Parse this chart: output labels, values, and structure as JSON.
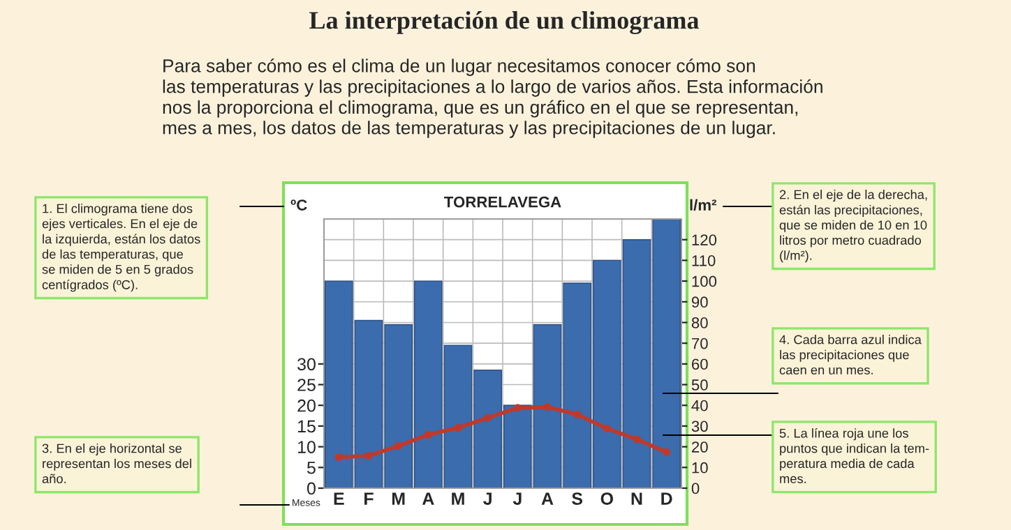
{
  "chart_data": {
    "type": "bar",
    "title": "TORRELAVEGA",
    "annotations": [
      "La interpretación de un climograma",
      "Para saber cómo es el clima de un lugar necesitamos conocer cómo son\nlas temperaturas y las precipitaciones a lo largo de varios años. Esta información\nnos la proporciona el climograma, que es un gráfico en el que se representan,\nmes a mes, los datos de las temperaturas y las precipitaciones de un lugar.",
      "1. El climograma tiene dos\nejes verticales. En el eje de\nla izquierda, están los datos\nde las temperaturas, que\nse miden de 5 en 5 grados\ncentígrados (ºC).",
      "2. En el eje de la derecha,\nestán las precipitaciones,\nque se miden de 10 en 10\nlitros por metro cuadrado\n(l/m²).",
      "3. En el eje horizontal se\nrepresentan los meses del\naño.",
      "4. Cada barra azul indica\nlas precipitaciones que\ncaen en un mes.",
      "5. La línea roja une los\npuntos que indican la tem-\nperatura media de cada\nmes."
    ],
    "ylabel": "ºC",
    "y2label": "l/m²",
    "xlabel": "Meses",
    "categories": [
      "E",
      "F",
      "M",
      "A",
      "M",
      "J",
      "J",
      "A",
      "S",
      "O",
      "N",
      "D"
    ],
    "series": [
      {
        "axis": "y2",
        "color": "#3b6cae",
        "values": [
          100,
          81,
          79,
          100,
          69,
          57,
          40,
          79,
          99,
          110,
          120,
          130
        ]
      },
      {
        "type": "line",
        "axis": "y",
        "color": "#c0392b",
        "marker": "circle",
        "values": [
          7.5,
          7.8,
          10.2,
          12.9,
          14.6,
          17,
          19.4,
          19.6,
          17.8,
          14.4,
          11.8,
          8.7
        ]
      }
    ],
    "ylim": [
      0,
      65
    ],
    "yticks": [
      0,
      5,
      10,
      15,
      20,
      25,
      30
    ],
    "y2lim": [
      0,
      130
    ],
    "y2ticks": [
      0,
      10,
      20,
      30,
      40,
      50,
      60,
      70,
      80,
      90,
      100,
      110,
      120
    ],
    "grid": true
  }
}
